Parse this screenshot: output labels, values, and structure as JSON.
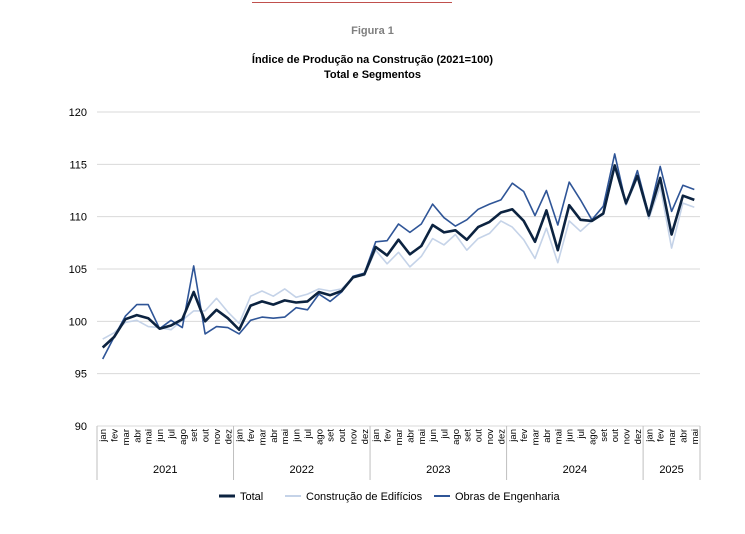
{
  "figure_label": "Figura 1",
  "chart_data": {
    "type": "line",
    "title": "Índice de Produção na Construção (2021=100)",
    "subtitle": "Total e Segmentos",
    "ylim": [
      90,
      120
    ],
    "yticks": [
      90,
      95,
      100,
      105,
      110,
      115,
      120
    ],
    "grid": true,
    "legend_position": "bottom",
    "months": [
      "jan",
      "fev",
      "mar",
      "abr",
      "mai",
      "jun",
      "jul",
      "ago",
      "set",
      "out",
      "nov",
      "dez"
    ],
    "years": [
      "2021",
      "2022",
      "2023",
      "2024",
      "2025"
    ],
    "x": [
      "jan",
      "fev",
      "mar",
      "abr",
      "mai",
      "jun",
      "jul",
      "ago",
      "set",
      "out",
      "nov",
      "dez",
      "jan",
      "fev",
      "mar",
      "abr",
      "mai",
      "jun",
      "jul",
      "ago",
      "set",
      "out",
      "nov",
      "dez",
      "jan",
      "fev",
      "mar",
      "abr",
      "mai",
      "jun",
      "jul",
      "ago",
      "set",
      "out",
      "nov",
      "dez",
      "jan",
      "fev",
      "mar",
      "abr",
      "mai",
      "jun",
      "jul",
      "ago",
      "set",
      "out",
      "nov",
      "dez",
      "jan",
      "fev",
      "mar",
      "abr",
      "mai"
    ],
    "series": [
      {
        "name": "Total",
        "color": "#0c2340",
        "width": 2.6,
        "values": [
          97.5,
          98.5,
          100.2,
          100.6,
          100.3,
          99.3,
          99.6,
          100.2,
          102.8,
          100.0,
          101.1,
          100.3,
          99.2,
          101.5,
          101.9,
          101.6,
          102.0,
          101.8,
          101.9,
          102.8,
          102.5,
          102.9,
          104.2,
          104.5,
          107.1,
          106.3,
          107.8,
          106.4,
          107.2,
          109.2,
          108.5,
          108.7,
          107.8,
          109.0,
          109.5,
          110.4,
          110.7,
          109.6,
          107.6,
          110.6,
          106.8,
          111.1,
          109.7,
          109.6,
          110.3,
          114.9,
          111.3,
          113.9,
          110.1,
          113.7,
          108.3,
          112.0,
          111.6
        ]
      },
      {
        "name": "Construção de Edifícios",
        "color": "#c5d3e8",
        "width": 1.6,
        "values": [
          98.3,
          98.9,
          99.9,
          100.1,
          99.5,
          99.4,
          99.2,
          100.1,
          101.0,
          101.0,
          102.2,
          100.9,
          99.8,
          102.4,
          102.9,
          102.4,
          103.1,
          102.3,
          102.6,
          103.1,
          102.9,
          103.1,
          104.2,
          104.4,
          106.8,
          105.5,
          106.6,
          105.2,
          106.2,
          107.9,
          107.3,
          108.3,
          106.8,
          107.9,
          108.4,
          109.6,
          109.0,
          107.8,
          106.0,
          108.9,
          105.6,
          109.6,
          108.6,
          109.6,
          110.2,
          114.7,
          111.1,
          113.7,
          109.8,
          112.9,
          107.0,
          111.3,
          110.9
        ]
      },
      {
        "name": "Obras de Engenharia",
        "color": "#2f5597",
        "width": 1.6,
        "values": [
          96.4,
          98.5,
          100.5,
          101.6,
          101.6,
          99.3,
          100.1,
          99.4,
          105.3,
          98.8,
          99.5,
          99.4,
          98.8,
          100.1,
          100.4,
          100.3,
          100.4,
          101.3,
          101.1,
          102.6,
          101.9,
          102.8,
          104.3,
          104.6,
          107.6,
          107.7,
          109.3,
          108.5,
          109.3,
          111.2,
          109.9,
          109.1,
          109.7,
          110.7,
          111.2,
          111.6,
          113.2,
          112.4,
          110.1,
          112.5,
          109.2,
          113.3,
          111.6,
          109.7,
          111.0,
          116.0,
          111.2,
          114.4,
          110.2,
          114.8,
          110.5,
          113.0,
          112.6
        ]
      }
    ]
  }
}
